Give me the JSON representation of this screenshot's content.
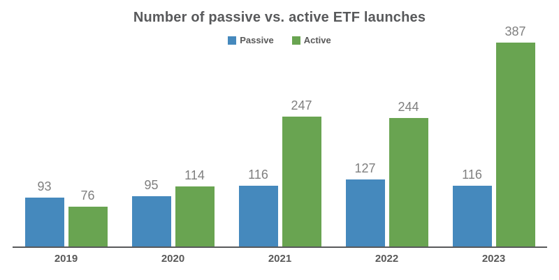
{
  "chart_data": {
    "type": "bar",
    "title": "Number of passive vs. active ETF launches",
    "categories": [
      "2019",
      "2020",
      "2021",
      "2022",
      "2023"
    ],
    "series": [
      {
        "name": "Passive",
        "color": "#4589bd",
        "values": [
          93,
          95,
          116,
          127,
          116
        ]
      },
      {
        "name": "Active",
        "color": "#69a451",
        "values": [
          76,
          114,
          247,
          244,
          387
        ]
      }
    ],
    "ylim": [
      0,
      400
    ],
    "grid": false,
    "legend_position": "top",
    "data_labels": true,
    "axis_color": "#58595b",
    "label_color": "#7f7f7f",
    "title_color": "#58595b"
  }
}
